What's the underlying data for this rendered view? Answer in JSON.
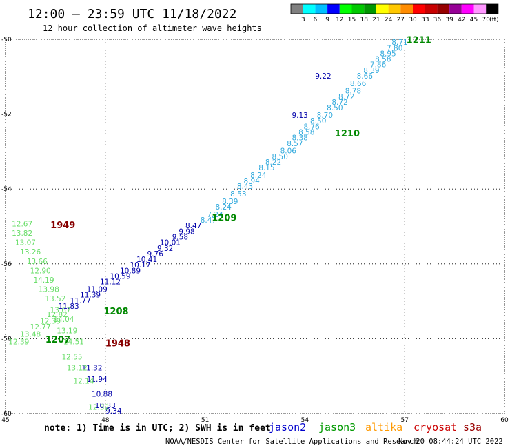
{
  "header": {
    "title": "12:00 – 23:59 UTC 11/18/2022",
    "subtitle": "12 hour collection of altimeter wave heights"
  },
  "colorbar": {
    "labels": [
      "3",
      "6",
      "9",
      "12",
      "15",
      "18",
      "21",
      "24",
      "27",
      "30",
      "33",
      "36",
      "39",
      "42",
      "45",
      "70"
    ],
    "unit": "(ft)",
    "colors": [
      "#808080",
      "#00ffff",
      "#00bfff",
      "#0000ff",
      "#00ff00",
      "#00c800",
      "#009600",
      "#ffff00",
      "#ffc800",
      "#ff8c00",
      "#ff0000",
      "#c80000",
      "#960000",
      "#960096",
      "#ff00ff",
      "#ff96ff",
      "#000000"
    ]
  },
  "footer": {
    "note": "note: 1) Time is in UTC; 2) SWH is in feet",
    "missions": [
      {
        "name": "jason2",
        "color": "#0000cc"
      },
      {
        "name": "jason3",
        "color": "#009900"
      },
      {
        "name": "altika",
        "color": "#ff9900"
      },
      {
        "name": "cryosat",
        "color": "#cc0000"
      },
      {
        "name": "s3a",
        "color": "#990000"
      }
    ],
    "credit_left": "NOAA/NESDIS Center for Satellite Applications and Research",
    "credit_right": "Nov 20 08:44:24 UTC 2022"
  },
  "chart_data": {
    "type": "scatter",
    "title": "12:00 – 23:59 UTC 11/18/2022",
    "xlim": [
      45,
      60
    ],
    "ylim": [
      -60,
      -50
    ],
    "xticks": [
      "45",
      "48",
      "51",
      "54",
      "57",
      "60"
    ],
    "yticks": [
      "-50",
      "-52",
      "-54",
      "-56",
      "-58",
      "-60"
    ],
    "grid": true,
    "series": [
      {
        "name": "jason3",
        "color": "#33aadd",
        "points": [
          {
            "x": 56.85,
            "y": -50.15,
            "label": "8.71"
          },
          {
            "x": 56.7,
            "y": -50.3,
            "label": "7.80"
          },
          {
            "x": 56.5,
            "y": -50.45,
            "label": "8.95"
          },
          {
            "x": 56.35,
            "y": -50.6,
            "label": "8.58"
          },
          {
            "x": 56.2,
            "y": -50.75,
            "label": "7.86"
          },
          {
            "x": 56.0,
            "y": -50.9,
            "label": "8.39"
          },
          {
            "x": 55.8,
            "y": -51.05,
            "label": "8.66"
          },
          {
            "x": 55.6,
            "y": -51.25,
            "label": "8.66"
          },
          {
            "x": 55.45,
            "y": -51.45,
            "label": "8.78"
          },
          {
            "x": 55.25,
            "y": -51.6,
            "label": "8.72"
          },
          {
            "x": 55.05,
            "y": -51.75,
            "label": "8.72"
          },
          {
            "x": 54.9,
            "y": -51.9,
            "label": "8.50"
          },
          {
            "x": 54.6,
            "y": -52.1,
            "label": "8.70"
          },
          {
            "x": 54.4,
            "y": -52.25,
            "label": "8.50"
          },
          {
            "x": 54.2,
            "y": -52.4,
            "label": "8.76"
          },
          {
            "x": 54.05,
            "y": -52.55,
            "label": "8.58"
          },
          {
            "x": 53.85,
            "y": -52.7,
            "label": "8.38"
          },
          {
            "x": 53.7,
            "y": -52.85,
            "label": "8.57"
          },
          {
            "x": 53.5,
            "y": -53.05,
            "label": "8.06"
          },
          {
            "x": 53.25,
            "y": -53.2,
            "label": "8.50"
          },
          {
            "x": 53.05,
            "y": -53.35,
            "label": "8.22"
          },
          {
            "x": 52.85,
            "y": -53.5,
            "label": "8.15"
          },
          {
            "x": 52.6,
            "y": -53.7,
            "label": "8.24"
          },
          {
            "x": 52.4,
            "y": -53.85,
            "label": "8.94"
          },
          {
            "x": 52.2,
            "y": -54.0,
            "label": "8.43"
          },
          {
            "x": 52.0,
            "y": -54.2,
            "label": "8.53"
          },
          {
            "x": 51.75,
            "y": -54.4,
            "label": "8.39"
          },
          {
            "x": 51.55,
            "y": -54.55,
            "label": "8.24"
          },
          {
            "x": 51.3,
            "y": -54.75,
            "label": "7.24"
          },
          {
            "x": 51.1,
            "y": -54.9,
            "label": "8.47"
          }
        ]
      },
      {
        "name": "jason3",
        "color": "#0000aa",
        "points": [
          {
            "x": 54.55,
            "y": -51.05,
            "label": "9.22"
          },
          {
            "x": 53.85,
            "y": -52.1,
            "label": "9.13"
          },
          {
            "x": 50.65,
            "y": -55.05,
            "label": "8.47"
          },
          {
            "x": 50.45,
            "y": -55.2,
            "label": "9.98"
          },
          {
            "x": 50.25,
            "y": -55.35,
            "label": "9.58"
          },
          {
            "x": 49.95,
            "y": -55.5,
            "label": "10.01"
          },
          {
            "x": 49.8,
            "y": -55.65,
            "label": "9.32"
          },
          {
            "x": 49.5,
            "y": -55.8,
            "label": "9.76"
          },
          {
            "x": 49.25,
            "y": -55.95,
            "label": "10.41"
          },
          {
            "x": 49.05,
            "y": -56.1,
            "label": "10.17"
          },
          {
            "x": 48.75,
            "y": -56.25,
            "label": "10.89"
          },
          {
            "x": 48.45,
            "y": -56.4,
            "label": "10.59"
          },
          {
            "x": 48.15,
            "y": -56.55,
            "label": "11.12"
          },
          {
            "x": 47.75,
            "y": -56.75,
            "label": "11.09"
          },
          {
            "x": 47.55,
            "y": -56.9,
            "label": "11.39"
          },
          {
            "x": 47.25,
            "y": -57.05,
            "label": "11.77"
          },
          {
            "x": 46.9,
            "y": -57.2,
            "label": "11.83"
          },
          {
            "x": 47.6,
            "y": -58.85,
            "label": "11.32"
          },
          {
            "x": 47.75,
            "y": -59.15,
            "label": "11.94"
          },
          {
            "x": 47.9,
            "y": -59.55,
            "label": "10.88"
          },
          {
            "x": 48.0,
            "y": -59.85,
            "label": "10.33"
          },
          {
            "x": 48.25,
            "y": -60.0,
            "label": "9.34"
          }
        ]
      },
      {
        "name": "jason3",
        "color": "#66dd66",
        "points": [
          {
            "x": 45.5,
            "y": -55.0,
            "label": "12.67"
          },
          {
            "x": 45.5,
            "y": -55.25,
            "label": "13.82"
          },
          {
            "x": 45.6,
            "y": -55.5,
            "label": "13.07"
          },
          {
            "x": 45.75,
            "y": -55.75,
            "label": "13.26"
          },
          {
            "x": 45.95,
            "y": -56.0,
            "label": "13.66"
          },
          {
            "x": 46.05,
            "y": -56.25,
            "label": "12.90"
          },
          {
            "x": 46.15,
            "y": -56.5,
            "label": "14.19"
          },
          {
            "x": 46.3,
            "y": -56.75,
            "label": "13.98"
          },
          {
            "x": 46.5,
            "y": -57.0,
            "label": "13.52"
          },
          {
            "x": 46.65,
            "y": -57.3,
            "label": "13.67"
          },
          {
            "x": 46.55,
            "y": -57.42,
            "label": "12.82"
          },
          {
            "x": 46.75,
            "y": -57.55,
            "label": "14.04"
          },
          {
            "x": 46.35,
            "y": -57.6,
            "label": "12.39"
          },
          {
            "x": 46.05,
            "y": -57.75,
            "label": "12.77"
          },
          {
            "x": 46.85,
            "y": -57.85,
            "label": "13.19"
          },
          {
            "x": 45.75,
            "y": -57.95,
            "label": "13.48"
          },
          {
            "x": 45.4,
            "y": -58.15,
            "label": "12.39"
          },
          {
            "x": 47.05,
            "y": -58.15,
            "label": "14.51"
          },
          {
            "x": 47.0,
            "y": -58.55,
            "label": "12.55"
          },
          {
            "x": 47.15,
            "y": -58.85,
            "label": "13.12"
          },
          {
            "x": 47.35,
            "y": -59.2,
            "label": "12.14"
          },
          {
            "x": 47.8,
            "y": -59.9,
            "label": "12.32"
          }
        ]
      }
    ],
    "time_labels": [
      {
        "x": 57.05,
        "y": -50.1,
        "label": "1211",
        "color": "#008800"
      },
      {
        "x": 54.9,
        "y": -52.6,
        "label": "1210",
        "color": "#008800"
      },
      {
        "x": 51.2,
        "y": -54.85,
        "label": "1209",
        "color": "#008800"
      },
      {
        "x": 47.95,
        "y": -57.35,
        "label": "1208",
        "color": "#008800"
      },
      {
        "x": 46.2,
        "y": -58.1,
        "label": "1207",
        "color": "#008800"
      },
      {
        "x": 46.35,
        "y": -55.05,
        "label": "1949",
        "color": "#880000"
      },
      {
        "x": 48.0,
        "y": -58.2,
        "label": "1948",
        "color": "#880000"
      }
    ]
  }
}
